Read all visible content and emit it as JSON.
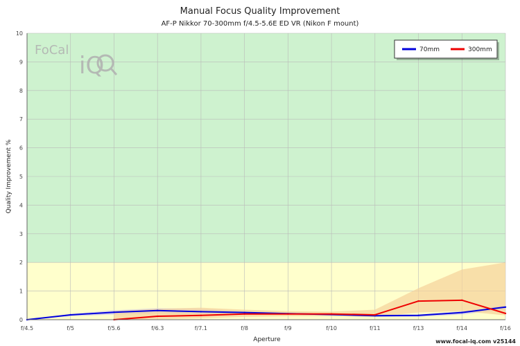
{
  "chart_data": {
    "type": "line",
    "title": "Manual Focus Quality Improvement",
    "subtitle": "AF-P Nikkor 70-300mm f/4.5-5.6E ED VR (Nikon F mount)",
    "xlabel": "Aperture",
    "ylabel": "Quality Improvement %",
    "categories": [
      "f/4.5",
      "f/5",
      "f/5.6",
      "f/6.3",
      "f/7.1",
      "f/8",
      "f/9",
      "f/10",
      "f/11",
      "f/13",
      "f/14",
      "f/16"
    ],
    "ylim": [
      0,
      10
    ],
    "yticks": [
      0,
      1,
      2,
      3,
      4,
      5,
      6,
      7,
      8,
      9,
      10
    ],
    "grid": true,
    "legend_position": "top-right",
    "bands": [
      {
        "from": 0,
        "to": 2,
        "color": "#ffffcc"
      },
      {
        "from": 2,
        "to": 10,
        "color": "#cef2cf"
      }
    ],
    "series": [
      {
        "name": "70mm",
        "color": "#0000dd",
        "values": [
          0,
          0.17,
          0.26,
          0.32,
          0.28,
          0.25,
          0.21,
          0.18,
          0.14,
          0.15,
          0.25,
          0.44
        ],
        "band_upper": [
          0,
          0.2,
          0.33,
          0.4,
          0.38,
          0.3,
          0.25,
          0.22,
          0.18,
          0.18,
          0.3,
          0.5
        ],
        "band_lower": [
          0,
          0.12,
          0.18,
          0.22,
          0.2,
          0.18,
          0.16,
          0.14,
          0.1,
          0.1,
          0.18,
          0.36
        ],
        "band_color": "#c9c3e8"
      },
      {
        "name": "300mm",
        "color": "#ee0000",
        "values": [
          null,
          null,
          0,
          0.12,
          0.15,
          0.2,
          0.2,
          0.2,
          0.17,
          0.65,
          0.68,
          0.22
        ],
        "band_upper": [
          null,
          null,
          0.3,
          0.38,
          0.42,
          0.35,
          0.3,
          0.28,
          0.35,
          1.1,
          1.75,
          2.0
        ],
        "band_lower": [
          null,
          null,
          0,
          0.02,
          0.05,
          0.1,
          0.12,
          0.12,
          0.1,
          0.25,
          0.3,
          0.15
        ],
        "band_color": "#f5d29a"
      }
    ]
  },
  "logo": {
    "text": "FoCal",
    "sub": "iQ"
  },
  "footer": "www.focal-iq.com  v25144"
}
